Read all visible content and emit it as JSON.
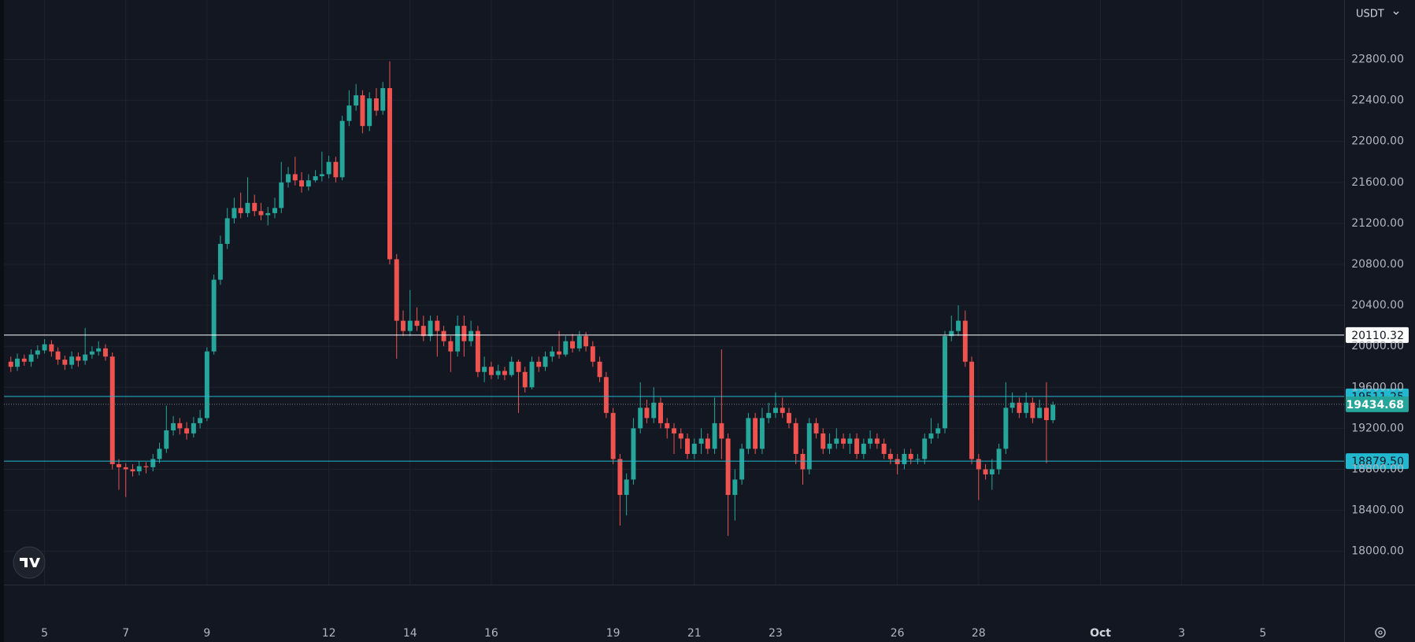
{
  "chart_data": {
    "type": "candlestick",
    "currency": "USDT",
    "x": [
      4.17,
      4.33,
      4.5,
      4.67,
      4.83,
      5,
      5.17,
      5.33,
      5.5,
      5.67,
      5.83,
      6,
      6.17,
      6.33,
      6.5,
      6.67,
      6.83,
      7,
      7.17,
      7.33,
      7.5,
      7.67,
      7.83,
      8,
      8.17,
      8.33,
      8.5,
      8.67,
      8.83,
      9,
      9.17,
      9.33,
      9.5,
      9.67,
      9.83,
      10,
      10.17,
      10.33,
      10.5,
      10.67,
      10.83,
      11,
      11.17,
      11.33,
      11.5,
      11.67,
      11.83,
      12,
      12.17,
      12.33,
      12.5,
      12.67,
      12.83,
      13,
      13.17,
      13.33,
      13.5,
      13.67,
      13.83,
      14,
      14.17,
      14.33,
      14.5,
      14.67,
      14.83,
      15,
      15.17,
      15.33,
      15.5,
      15.67,
      15.83,
      16,
      16.17,
      16.33,
      16.5,
      16.67,
      16.83,
      17,
      17.17,
      17.33,
      17.5,
      17.67,
      17.83,
      18,
      18.17,
      18.33,
      18.5,
      18.67,
      18.83,
      19,
      19.17,
      19.33,
      19.5,
      19.67,
      19.83,
      20,
      20.17,
      20.33,
      20.5,
      20.67,
      20.83,
      21,
      21.17,
      21.33,
      21.5,
      21.67,
      21.83,
      22,
      22.17,
      22.33,
      22.5,
      22.67,
      22.83,
      23,
      23.17,
      23.33,
      23.5,
      23.67,
      23.83,
      24,
      24.17,
      24.33,
      24.5,
      24.67,
      24.83,
      25,
      25.17,
      25.33,
      25.5,
      25.67,
      25.83,
      26,
      26.17,
      26.33,
      26.5,
      26.67,
      26.83,
      27,
      27.17,
      27.33,
      27.5,
      27.67,
      27.83,
      28,
      28.17,
      28.33,
      28.5,
      28.67,
      28.83,
      29,
      29.17,
      29.33,
      29.5,
      29.67,
      29.83
    ],
    "open": [
      19850,
      19800,
      19880,
      19850,
      19920,
      19960,
      20020,
      19950,
      19870,
      19820,
      19900,
      19860,
      19920,
      19950,
      19980,
      19900,
      18850,
      18820,
      18800,
      18780,
      18830,
      18820,
      18900,
      19000,
      19180,
      19250,
      19200,
      19150,
      19250,
      19300,
      19950,
      20650,
      21000,
      21250,
      21350,
      21300,
      21400,
      21320,
      21280,
      21300,
      21350,
      21600,
      21680,
      21620,
      21560,
      21620,
      21660,
      21680,
      21800,
      21650,
      22200,
      22350,
      22450,
      22150,
      22420,
      22300,
      22520,
      20850,
      20250,
      20150,
      20250,
      20200,
      20100,
      20250,
      20150,
      20050,
      19950,
      20200,
      20050,
      20150,
      19750,
      19800,
      19720,
      19760,
      19720,
      19850,
      19750,
      19600,
      19850,
      19800,
      19900,
      19950,
      19920,
      20050,
      19980,
      20100,
      20000,
      19850,
      19700,
      19350,
      18900,
      18550,
      18700,
      19200,
      19400,
      19300,
      19450,
      19250,
      19200,
      19150,
      19100,
      18950,
      19050,
      19100,
      19000,
      19250,
      19100,
      18550,
      18700,
      19000,
      19300,
      19000,
      19300,
      19350,
      19400,
      19350,
      19250,
      18950,
      18800,
      19250,
      19150,
      19000,
      19050,
      19100,
      19050,
      19100,
      18950,
      19050,
      19100,
      19050,
      18950,
      18900,
      18850,
      18950,
      18900,
      18900,
      19100,
      19150,
      19200,
      20100,
      20150,
      20250,
      19850,
      18900,
      18800,
      18750,
      18800,
      19000,
      19400,
      19450,
      19350,
      19450,
      19300,
      19400,
      19280
    ],
    "high": [
      19900,
      19930,
      19920,
      19970,
      20010,
      20070,
      20060,
      19990,
      19910,
      19950,
      19940,
      20180,
      20000,
      20050,
      20020,
      19940,
      18900,
      18860,
      18850,
      18880,
      18870,
      18950,
      19060,
      19420,
      19320,
      19300,
      19260,
      19310,
      19380,
      19990,
      20700,
      21080,
      21350,
      21450,
      21500,
      21650,
      21480,
      21400,
      21360,
      21450,
      21800,
      21750,
      21850,
      21700,
      21680,
      21720,
      21900,
      21860,
      21850,
      22250,
      22500,
      22560,
      22500,
      22480,
      22520,
      22580,
      22780,
      20900,
      20350,
      20550,
      20380,
      20300,
      20300,
      20300,
      20200,
      20100,
      20300,
      20300,
      20250,
      20200,
      19900,
      19850,
      19820,
      19800,
      19900,
      19870,
      19800,
      19900,
      19900,
      19950,
      20000,
      20150,
      20100,
      20120,
      20150,
      20140,
      20050,
      19900,
      19750,
      19400,
      18950,
      18760,
      19300,
      19650,
      19480,
      19600,
      19500,
      19300,
      19250,
      19200,
      19150,
      19100,
      19200,
      19150,
      19500,
      19970,
      19150,
      18800,
      19050,
      19350,
      19350,
      19400,
      19450,
      19550,
      19500,
      19400,
      19300,
      19000,
      19300,
      19300,
      19200,
      19150,
      19200,
      19150,
      19150,
      19150,
      19100,
      19180,
      19150,
      19100,
      19000,
      18950,
      19000,
      19000,
      18950,
      19150,
      19300,
      19250,
      20150,
      20300,
      20400,
      20350,
      19900,
      18950,
      18850,
      18900,
      19050,
      19650,
      19550,
      19500,
      19550,
      19500,
      19480,
      19650,
      19460
    ],
    "low": [
      19750,
      19760,
      19810,
      19800,
      19880,
      19930,
      19900,
      19820,
      19770,
      19780,
      19800,
      19820,
      19880,
      19910,
      19860,
      18800,
      18600,
      18530,
      18730,
      18740,
      18760,
      18780,
      18860,
      18960,
      19130,
      19140,
      19090,
      19110,
      19200,
      19270,
      19920,
      20600,
      20950,
      21200,
      21250,
      21260,
      21270,
      21230,
      21180,
      21250,
      21300,
      21550,
      21570,
      21500,
      21520,
      21600,
      21610,
      21640,
      21600,
      21620,
      22150,
      22300,
      22080,
      22100,
      22250,
      22260,
      20800,
      19880,
      20100,
      20100,
      20150,
      20050,
      20050,
      19900,
      20000,
      19750,
      19900,
      19900,
      20000,
      19700,
      19650,
      19680,
      19680,
      19670,
      19700,
      19350,
      19550,
      19580,
      19750,
      19760,
      19850,
      19880,
      19900,
      19940,
      19950,
      19950,
      19800,
      19650,
      19300,
      18850,
      18250,
      18350,
      18650,
      19150,
      19250,
      19250,
      19200,
      19100,
      18950,
      19000,
      18900,
      18900,
      18950,
      18950,
      18950,
      18900,
      18150,
      18300,
      18650,
      18950,
      18950,
      18950,
      19250,
      19300,
      19300,
      19200,
      18850,
      18650,
      18750,
      19100,
      18950,
      18950,
      19000,
      19000,
      18950,
      18900,
      18900,
      19000,
      19000,
      18900,
      18850,
      18750,
      18800,
      18850,
      18850,
      18850,
      19050,
      19100,
      19150,
      20050,
      20100,
      19800,
      18850,
      18500,
      18700,
      18600,
      18750,
      18950,
      19350,
      19300,
      19300,
      19250,
      19300,
      18860,
      19250
    ],
    "close": [
      19800,
      19880,
      19850,
      19920,
      19960,
      20020,
      19950,
      19870,
      19820,
      19900,
      19860,
      19920,
      19950,
      19980,
      19900,
      18850,
      18820,
      18800,
      18780,
      18830,
      18820,
      18900,
      19000,
      19180,
      19250,
      19200,
      19150,
      19250,
      19300,
      19950,
      20650,
      21000,
      21250,
      21350,
      21300,
      21400,
      21320,
      21280,
      21300,
      21350,
      21600,
      21680,
      21620,
      21560,
      21620,
      21660,
      21680,
      21800,
      21650,
      22200,
      22350,
      22450,
      22150,
      22420,
      22300,
      22520,
      20850,
      20250,
      20150,
      20250,
      20200,
      20100,
      20250,
      20150,
      20050,
      19950,
      20200,
      20050,
      20150,
      19750,
      19800,
      19720,
      19760,
      19720,
      19850,
      19750,
      19600,
      19850,
      19800,
      19900,
      19950,
      19920,
      20050,
      19980,
      20100,
      20000,
      19850,
      19700,
      19350,
      18900,
      18550,
      18700,
      19200,
      19400,
      19300,
      19450,
      19250,
      19200,
      19150,
      19100,
      18950,
      19050,
      19100,
      19000,
      19250,
      19100,
      18550,
      18700,
      19000,
      19300,
      19000,
      19300,
      19350,
      19400,
      19350,
      19250,
      18950,
      18800,
      19250,
      19150,
      19000,
      19050,
      19100,
      19050,
      19100,
      18950,
      19050,
      19100,
      19050,
      18950,
      18900,
      18850,
      18950,
      18900,
      18900,
      19100,
      19150,
      19200,
      20100,
      20150,
      20250,
      19850,
      18900,
      18800,
      18750,
      18800,
      19000,
      19400,
      19450,
      19350,
      19450,
      19300,
      19400,
      19280,
      19430
    ],
    "up_color": "#26a69a",
    "down_color": "#ef5350",
    "xlim": [
      4,
      37
    ],
    "xticks": [
      5,
      7,
      9,
      12,
      14,
      16,
      19,
      21,
      23,
      26,
      28,
      {
        "value": 31,
        "label": "Oct"
      },
      {
        "value": 33,
        "label": "3"
      },
      {
        "value": 35,
        "label": "5"
      }
    ],
    "ylim": [
      17675,
      23380
    ],
    "yticks": [
      {
        "value": 18000,
        "label": "18000.00"
      },
      {
        "value": 18400,
        "label": "18400.00"
      },
      {
        "value": 18800,
        "label": "18800.00"
      },
      {
        "value": 19200,
        "label": "19200.00"
      },
      {
        "value": 19600,
        "label": "19600.00"
      },
      {
        "value": 20000,
        "label": "20000.00"
      },
      {
        "value": 20400,
        "label": "20400.00"
      },
      {
        "value": 20800,
        "label": "20800.00"
      },
      {
        "value": 21200,
        "label": "21200.00"
      },
      {
        "value": 21600,
        "label": "21600.00"
      },
      {
        "value": 22000,
        "label": "22000.00"
      },
      {
        "value": 22400,
        "label": "22400.00"
      },
      {
        "value": 22800,
        "label": "22800.00"
      }
    ],
    "grid": true,
    "price_lines": [
      {
        "value": 20110.32,
        "label": "20110.32",
        "color": "#ffffff",
        "text_color": "#131722",
        "style": "solid"
      },
      {
        "value": 19511.25,
        "label": "19511.25",
        "color": "#22b8cf",
        "text_color": "#131722",
        "style": "solid"
      },
      {
        "value": 18879.5,
        "label": "18879.50",
        "color": "#22b8cf",
        "text_color": "#131722",
        "style": "solid"
      },
      {
        "value": 19434.68,
        "label": "19434.68",
        "color": "#26a69a",
        "text_color": "#ffffff",
        "style": "dotted"
      }
    ]
  }
}
